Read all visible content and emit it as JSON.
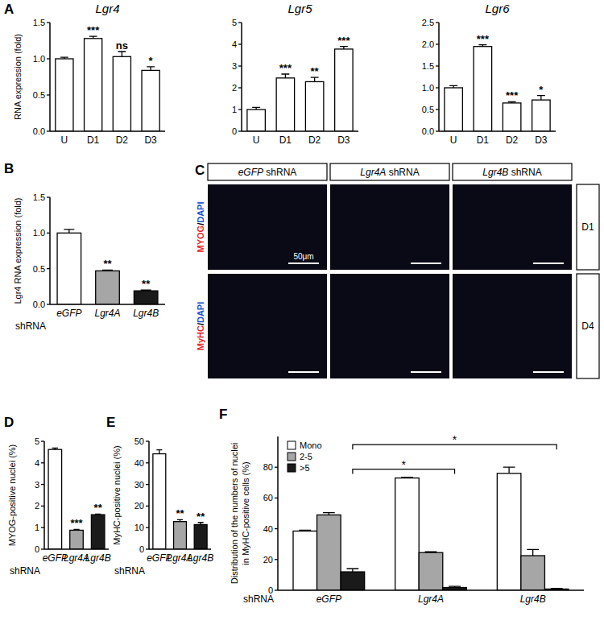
{
  "chart_data": [
    {
      "panel": "A",
      "type": "bar",
      "title": "Lgr4",
      "ylabel": "RNA expression (fold)",
      "categories": [
        "U",
        "D1",
        "D2",
        "D3"
      ],
      "values": [
        1.0,
        1.28,
        1.03,
        0.84
      ],
      "errors": [
        0.02,
        0.03,
        0.07,
        0.05
      ],
      "significance": [
        null,
        "***",
        "ns",
        "*"
      ],
      "color": "#ffffff",
      "ylim": [
        0,
        1.5
      ],
      "yticks": [
        {
          "value": 0,
          "label": "0.0"
        },
        {
          "value": 0.5,
          "label": "0.5"
        },
        {
          "value": 1,
          "label": "1.0"
        },
        {
          "value": 1.5,
          "label": "1.5"
        }
      ]
    },
    {
      "type": "bar",
      "title": "Lgr5",
      "categories": [
        "U",
        "D1",
        "D2",
        "D3"
      ],
      "values": [
        1.0,
        2.45,
        2.28,
        3.78
      ],
      "errors": [
        0.1,
        0.18,
        0.2,
        0.12
      ],
      "significance": [
        null,
        "***",
        "**",
        "***"
      ],
      "color": "#ffffff",
      "ylim": [
        0,
        5
      ],
      "yticks": [
        0,
        1,
        2,
        3,
        4,
        5
      ]
    },
    {
      "type": "bar",
      "title": "Lgr6",
      "categories": [
        "U",
        "D1",
        "D2",
        "D3"
      ],
      "values": [
        1.0,
        1.95,
        0.65,
        0.72
      ],
      "errors": [
        0.05,
        0.04,
        0.03,
        0.1
      ],
      "significance": [
        null,
        "***",
        "***",
        "*"
      ],
      "color": "#ffffff",
      "ylim": [
        0,
        2.5
      ],
      "yticks": [
        {
          "value": 0,
          "label": "0.0"
        },
        {
          "value": 0.5,
          "label": "0.5"
        },
        {
          "value": 1,
          "label": "1.0"
        },
        {
          "value": 1.5,
          "label": "1.5"
        },
        {
          "value": 2,
          "label": "2.0"
        },
        {
          "value": 2.5,
          "label": "2.5"
        }
      ]
    },
    {
      "panel": "B",
      "type": "bar",
      "ylabel": "Lgr4 RNA expression (fold)",
      "xlabel": "shRNA",
      "categories": [
        "eGFP",
        "Lgr4A",
        "Lgr4B"
      ],
      "values": [
        1.0,
        0.47,
        0.19
      ],
      "errors": [
        0.05,
        0.01,
        0.01
      ],
      "significance": [
        null,
        "**",
        "**"
      ],
      "colors": [
        "#ffffff",
        "#a6a6a6",
        "#1a1a1a"
      ],
      "ylim": [
        0,
        1.5
      ],
      "yticks": [
        {
          "value": 0,
          "label": "0.0"
        },
        {
          "value": 0.5,
          "label": "0.5"
        },
        {
          "value": 1,
          "label": "1.0"
        },
        {
          "value": 1.5,
          "label": "1.5"
        }
      ]
    },
    {
      "panel": "D",
      "type": "bar",
      "ylabel": "MYOG-positive nuclei (%)",
      "xlabel": "shRNA",
      "categories": [
        "eGFP",
        "Lgr4A",
        "Lgr4B"
      ],
      "values": [
        4.62,
        0.88,
        1.6
      ],
      "errors": [
        0.07,
        0.04,
        0.03
      ],
      "significance": [
        null,
        "***",
        "**"
      ],
      "colors": [
        "#ffffff",
        "#a6a6a6",
        "#1a1a1a"
      ],
      "ylim": [
        0,
        5
      ],
      "yticks": [
        0,
        1,
        2,
        3,
        4,
        5
      ]
    },
    {
      "panel": "E",
      "type": "bar",
      "ylabel": "MyHC-positive nuclei (%)",
      "xlabel": "shRNA",
      "categories": [
        "eGFP",
        "Lgr4A",
        "Lgr4B"
      ],
      "values": [
        44.2,
        12.8,
        11.4
      ],
      "errors": [
        1.8,
        0.9,
        1.0
      ],
      "significance": [
        null,
        "**",
        "**"
      ],
      "colors": [
        "#ffffff",
        "#a6a6a6",
        "#1a1a1a"
      ],
      "ylim": [
        0,
        50
      ],
      "yticks": [
        0,
        10,
        20,
        30,
        40,
        50
      ]
    },
    {
      "panel": "F",
      "type": "bar",
      "ylabel": [
        "Distribution of the numbers of nuclei",
        "in MyHC-positive cells (%)"
      ],
      "xlabel": "shRNA",
      "categories": [
        "eGFP",
        "Lgr4A",
        "Lgr4B"
      ],
      "series": [
        {
          "name": "Mono",
          "color": "#ffffff",
          "values": [
            38.5,
            73,
            76
          ],
          "errors": [
            0.5,
            0.5,
            4
          ]
        },
        {
          "name": "2-5",
          "color": "#a6a6a6",
          "values": [
            49,
            24.5,
            22.5
          ],
          "errors": [
            1.5,
            0.5,
            4
          ]
        },
        {
          "name": ">5",
          "color": "#1a1a1a",
          "values": [
            12,
            1.8,
            0.8
          ],
          "errors": [
            2,
            0.8,
            0.4
          ]
        }
      ],
      "brackets": [
        {
          "series": 2,
          "from": 0,
          "to": 1,
          "label": "*"
        },
        {
          "series": 2,
          "from": 0,
          "to": 2,
          "label": "*"
        }
      ],
      "legend": "upper left",
      "ylim": [
        0,
        100
      ],
      "yticks": [
        0,
        20,
        40,
        60,
        80
      ]
    }
  ],
  "image_panel": {
    "panel": "C",
    "columns": [
      "eGFP shRNA",
      "Lgr4A shRNA",
      "Lgr4B shRNA"
    ],
    "rows": [
      {
        "stain": "MYOG/DAPI",
        "day": "D1"
      },
      {
        "stain": "MyHC/DAPI",
        "day": "D4"
      }
    ],
    "scale_bar": "50μm"
  }
}
